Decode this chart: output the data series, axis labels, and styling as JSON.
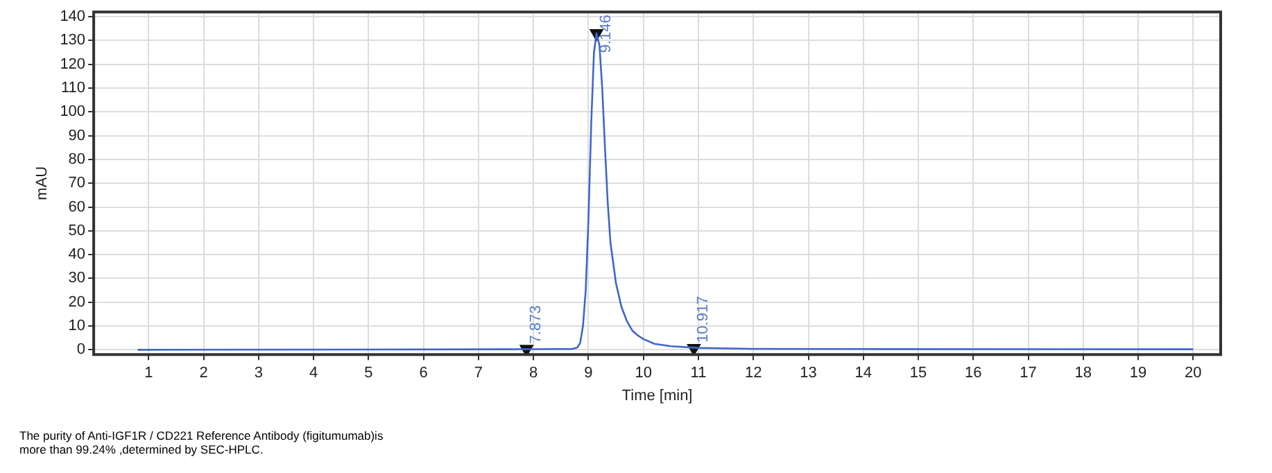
{
  "chart_data": {
    "type": "line",
    "xlabel": "Time [min]",
    "ylabel": "mAU",
    "x": [
      0.8,
      7.5,
      8.4,
      8.7,
      8.8,
      8.85,
      8.9,
      8.95,
      9.0,
      9.05,
      9.1,
      9.146,
      9.2,
      9.25,
      9.3,
      9.35,
      9.4,
      9.5,
      9.6,
      9.7,
      9.8,
      9.9,
      10,
      10.2,
      10.5,
      11,
      12,
      14,
      20
    ],
    "series": [
      {
        "color": "#3f66c8",
        "values": [
          0,
          0.2,
          0.3,
          0.3,
          1,
          3,
          10,
          25,
          55,
          95,
          125,
          133,
          128,
          110,
          85,
          62,
          45,
          28,
          18,
          12,
          8,
          6,
          4.5,
          2.5,
          1.5,
          0.8,
          0.4,
          0.3,
          0.2
        ]
      },
      {
        "type": "scatter",
        "color": "#111111",
        "marker": "triangle",
        "x": [
          7.873,
          9.146,
          10.917
        ],
        "values": [
          0.3,
          133,
          0.7
        ]
      }
    ],
    "xlim": [
      0,
      20.5
    ],
    "xticks": [
      1,
      2,
      3,
      4,
      5,
      6,
      7,
      8,
      9,
      10,
      11,
      12,
      13,
      14,
      15,
      16,
      17,
      18,
      19,
      20
    ],
    "ylim": [
      -2,
      142
    ],
    "yticks": [
      0,
      10,
      20,
      30,
      40,
      50,
      60,
      70,
      80,
      90,
      100,
      110,
      120,
      130,
      140
    ],
    "grid": true,
    "legend": false,
    "marker": "none",
    "line_style": "solid",
    "annotations": [
      {
        "text": "7.873",
        "x": 7.873,
        "y": 0.3
      },
      {
        "text": "9.146",
        "x": 9.146,
        "y": 133
      },
      {
        "text": "10.917",
        "x": 10.917,
        "y": 0.7
      },
      "The purity of Anti-IGF1R / CD221 Reference Antibody (figitumumab)is\nmore than 99.24% ,determined by SEC-HPLC."
    ]
  }
}
